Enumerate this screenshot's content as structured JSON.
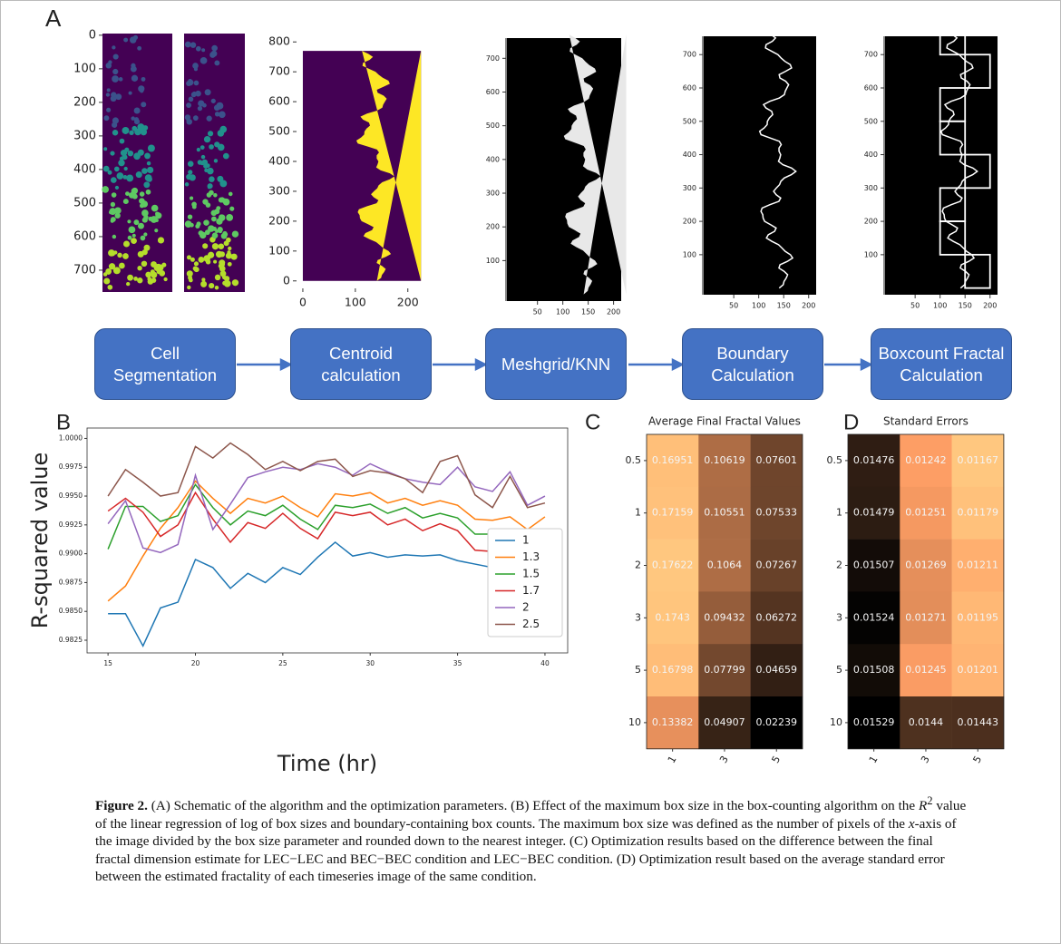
{
  "panel_labels": [
    "A",
    "B",
    "C",
    "D"
  ],
  "panel_a": {
    "plots": [
      {
        "ylim": [
          -5,
          765
        ],
        "y_inverted": true,
        "yticks": [
          0,
          100,
          200,
          300,
          400,
          500,
          600,
          700
        ],
        "xticks": []
      },
      {
        "xlim": [
          -12,
          235
        ],
        "ylim": [
          -25,
          825
        ],
        "yticks": [
          0,
          100,
          200,
          300,
          400,
          500,
          600,
          700,
          800
        ],
        "xticks": [
          0,
          100,
          200
        ]
      },
      {
        "xlim": [
          -12,
          215
        ],
        "ylim": [
          -20,
          760
        ],
        "yticks": [
          100,
          200,
          300,
          400,
          500,
          600,
          700
        ],
        "xticks": [
          50,
          100,
          150,
          200
        ]
      },
      {
        "xlim": [
          -12,
          215
        ],
        "ylim": [
          -20,
          755
        ],
        "yticks": [
          100,
          200,
          300,
          400,
          500,
          600,
          700
        ],
        "xticks": [
          50,
          100,
          150,
          200
        ]
      },
      {
        "xlim": [
          -12,
          215
        ],
        "ylim": [
          -20,
          755
        ],
        "yticks": [
          100,
          200,
          300,
          400,
          500,
          600,
          700
        ],
        "xticks": [
          50,
          100,
          150,
          200
        ]
      }
    ],
    "steps": [
      "Cell Segmentation",
      "Centroid calculation",
      "Meshgrid/KNN",
      "Boundary Calculation",
      "Boxcount Fractal Calculation"
    ]
  },
  "chart_data": [
    {
      "type": "line",
      "x_label": "Time (hr)",
      "y_label": "R-squared value",
      "xlim": [
        13.8,
        41.3
      ],
      "ylim": [
        0.9814,
        1.0009
      ],
      "xticks": [
        15,
        20,
        25,
        30,
        35,
        40
      ],
      "yticks": [
        0.9825,
        {
          "value": 0.985,
          "label": "0.9850"
        },
        0.9875,
        {
          "value": 0.99,
          "label": "0.9900"
        },
        0.9925,
        {
          "value": 0.995,
          "label": "0.9950"
        },
        0.9975,
        {
          "value": 1,
          "label": "1.0000"
        }
      ],
      "legend": "lower right",
      "x": [
        15,
        16,
        17,
        18,
        19,
        20,
        21,
        22,
        23,
        24,
        25,
        26,
        27,
        28,
        29,
        30,
        31,
        32,
        33,
        34,
        35,
        36,
        37,
        38,
        39,
        40
      ],
      "series": [
        {
          "name": "1",
          "color": "#1f77b4",
          "values": [
            0.9848,
            0.9848,
            0.982,
            0.9853,
            0.9858,
            0.9895,
            0.9888,
            0.987,
            0.9883,
            0.9875,
            0.9888,
            0.9882,
            0.9897,
            0.991,
            0.9898,
            0.9901,
            0.9897,
            0.9899,
            0.9898,
            0.9899,
            0.9894,
            0.9891,
            0.9888,
            0.9886,
            0.9879,
            0.9889
          ]
        },
        {
          "name": "1.3",
          "color": "#ff7f0e",
          "values": [
            0.9859,
            0.9872,
            0.9898,
            0.9922,
            0.994,
            0.9963,
            0.9948,
            0.9935,
            0.9948,
            0.9944,
            0.995,
            0.994,
            0.9932,
            0.9952,
            0.995,
            0.9953,
            0.9944,
            0.9948,
            0.9942,
            0.9946,
            0.9942,
            0.993,
            0.9929,
            0.9932,
            0.9921,
            0.9932
          ]
        },
        {
          "name": "1.5",
          "color": "#2ca02c",
          "values": [
            0.9904,
            0.9941,
            0.9941,
            0.9928,
            0.9933,
            0.996,
            0.994,
            0.9925,
            0.9937,
            0.9933,
            0.9942,
            0.993,
            0.9921,
            0.9942,
            0.994,
            0.9943,
            0.9935,
            0.994,
            0.9931,
            0.9935,
            0.9931,
            0.9917,
            0.9917,
            0.9919,
            0.9907,
            0.9921
          ]
        },
        {
          "name": "1.7",
          "color": "#d62728",
          "values": [
            0.9937,
            0.9948,
            0.9936,
            0.9915,
            0.9925,
            0.9953,
            0.993,
            0.991,
            0.9927,
            0.9922,
            0.9935,
            0.9922,
            0.9913,
            0.9936,
            0.9933,
            0.9936,
            0.9925,
            0.993,
            0.992,
            0.9926,
            0.992,
            0.9903,
            0.9902,
            0.9905,
            0.989,
            0.9907
          ]
        },
        {
          "name": "2",
          "color": "#9467bd",
          "values": [
            0.9926,
            0.9946,
            0.9905,
            0.9901,
            0.9908,
            0.9968,
            0.9921,
            0.9943,
            0.9966,
            0.9971,
            0.9975,
            0.9973,
            0.9978,
            0.9975,
            0.9968,
            0.9978,
            0.9971,
            0.9965,
            0.9962,
            0.996,
            0.9975,
            0.9958,
            0.9954,
            0.9971,
            0.9942,
            0.995
          ]
        },
        {
          "name": "2.5",
          "color": "#8c564b",
          "values": [
            0.995,
            0.9973,
            0.9962,
            0.995,
            0.9953,
            0.9993,
            0.9983,
            0.9996,
            0.9986,
            0.9973,
            0.998,
            0.9972,
            0.998,
            0.9982,
            0.9967,
            0.9972,
            0.997,
            0.9965,
            0.9953,
            0.998,
            0.9985,
            0.9951,
            0.994,
            0.9967,
            0.994,
            0.9944
          ]
        }
      ]
    },
    {
      "type": "heatmap",
      "title": "Average Final Fractal Values",
      "colormap": "copper",
      "reverse": false,
      "xcategories": [
        "1",
        "3",
        "5"
      ],
      "ycategories": [
        "0.5",
        "1",
        "2",
        "3",
        "5",
        "10"
      ],
      "values": [
        [
          0.16951,
          0.10619,
          0.07601
        ],
        [
          0.17159,
          0.10551,
          0.07533
        ],
        [
          0.17622,
          0.1064,
          0.07267
        ],
        [
          0.1743,
          0.09432,
          0.06272
        ],
        [
          0.16798,
          0.07799,
          0.04659
        ],
        [
          0.13382,
          0.04907,
          0.02239
        ]
      ]
    },
    {
      "type": "heatmap",
      "title": "Standard Errors",
      "colormap": "copper",
      "reverse": true,
      "xcategories": [
        "1",
        "3",
        "5"
      ],
      "ycategories": [
        "0.5",
        "1",
        "2",
        "3",
        "5",
        "10"
      ],
      "values": [
        [
          0.01476,
          0.01242,
          0.01167
        ],
        [
          0.01479,
          0.01251,
          0.01179
        ],
        [
          0.01507,
          0.01269,
          0.01211
        ],
        [
          0.01524,
          0.01271,
          0.01195
        ],
        [
          0.01508,
          0.01245,
          0.01201
        ],
        [
          0.01529,
          0.0144,
          0.01443
        ]
      ]
    }
  ],
  "caption": {
    "label": "Figure 2.",
    "parts": [
      "(A) Schematic of the algorithm and the optimization parameters. (B) Effect of the maximum box size in the box-counting algorithm on the",
      "R",
      "2",
      "value of the linear regression of log of box sizes and boundary-containing box counts. The maximum box size was defined as the number of pixels of the",
      "x",
      "-axis of the image divided by the box size parameter and rounded down to the nearest integer. (C) Optimization results based on the difference between the final fractal dimension estimate for LEC−LEC and BEC−BEC condition and LEC−BEC condition. (D) Optimization result based on the average standard error between the estimated fractality of each timeseries image of the same condition."
    ]
  }
}
